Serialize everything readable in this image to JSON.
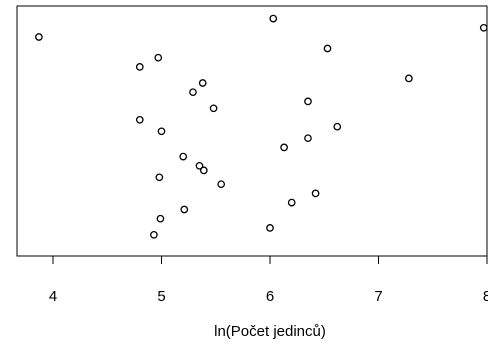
{
  "chart_data": {
    "type": "scatter",
    "title": "",
    "xlabel": "ln(Počet jedinců)",
    "ylabel": "",
    "xlim": [
      3.8,
      8.1
    ],
    "ylim": [
      0,
      1
    ],
    "x_ticks": [
      4,
      5,
      6,
      7,
      8
    ],
    "x_tick_labels": [
      "4",
      "5",
      "6",
      "7",
      "8"
    ],
    "grid": false,
    "marker": "open-circle",
    "points": [
      {
        "x": 3.87,
        "y": 0.9
      },
      {
        "x": 4.8,
        "y": 0.77
      },
      {
        "x": 4.97,
        "y": 0.81
      },
      {
        "x": 4.8,
        "y": 0.54
      },
      {
        "x": 5.0,
        "y": 0.49
      },
      {
        "x": 5.2,
        "y": 0.38
      },
      {
        "x": 4.98,
        "y": 0.29
      },
      {
        "x": 4.99,
        "y": 0.11
      },
      {
        "x": 4.93,
        "y": 0.04
      },
      {
        "x": 5.21,
        "y": 0.15
      },
      {
        "x": 5.29,
        "y": 0.66
      },
      {
        "x": 5.38,
        "y": 0.7
      },
      {
        "x": 5.48,
        "y": 0.59
      },
      {
        "x": 5.35,
        "y": 0.34
      },
      {
        "x": 5.39,
        "y": 0.32
      },
      {
        "x": 5.55,
        "y": 0.26
      },
      {
        "x": 6.03,
        "y": 0.98
      },
      {
        "x": 6.0,
        "y": 0.07
      },
      {
        "x": 6.13,
        "y": 0.42
      },
      {
        "x": 6.2,
        "y": 0.18
      },
      {
        "x": 6.35,
        "y": 0.62
      },
      {
        "x": 6.35,
        "y": 0.46
      },
      {
        "x": 6.42,
        "y": 0.22
      },
      {
        "x": 6.53,
        "y": 0.85
      },
      {
        "x": 6.62,
        "y": 0.51
      },
      {
        "x": 7.28,
        "y": 0.72
      },
      {
        "x": 7.97,
        "y": 0.94
      }
    ]
  }
}
